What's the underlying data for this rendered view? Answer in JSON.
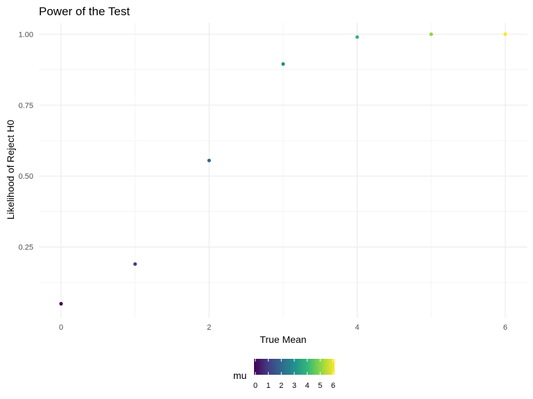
{
  "chart_data": {
    "type": "scatter",
    "title": "Power of the Test",
    "xlabel": "True Mean",
    "ylabel": "Likelihood of Reject H0",
    "x": [
      0,
      1,
      2,
      3,
      4,
      5,
      6
    ],
    "y": [
      0.05,
      0.19,
      0.555,
      0.895,
      0.99,
      1.0,
      1.0
    ],
    "xlim": [
      -0.3,
      6.3
    ],
    "ylim": [
      0.0,
      1.04
    ],
    "x_ticks": [
      "0",
      "2",
      "4",
      "6"
    ],
    "y_ticks": [
      "0.25",
      "0.50",
      "0.75",
      "1.00"
    ],
    "grid": true,
    "color_by": "mu",
    "legend": {
      "title": "mu",
      "placement": "bottom",
      "type": "colorbar",
      "ticks": [
        "0",
        "1",
        "2",
        "3",
        "4",
        "5",
        "6"
      ],
      "colors": [
        "#440154",
        "#443a83",
        "#31688e",
        "#21908d",
        "#35b779",
        "#8fd744",
        "#fde725"
      ]
    }
  }
}
